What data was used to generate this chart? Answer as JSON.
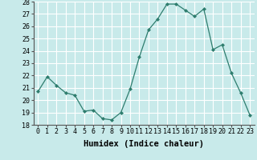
{
  "x": [
    0,
    1,
    2,
    3,
    4,
    5,
    6,
    7,
    8,
    9,
    10,
    11,
    12,
    13,
    14,
    15,
    16,
    17,
    18,
    19,
    20,
    21,
    22,
    23
  ],
  "y": [
    20.7,
    21.9,
    21.2,
    20.6,
    20.4,
    19.1,
    19.2,
    18.5,
    18.4,
    19.0,
    20.9,
    23.5,
    25.7,
    26.6,
    27.8,
    27.8,
    27.3,
    26.8,
    27.4,
    24.1,
    24.5,
    22.2,
    20.6,
    18.8
  ],
  "line_color": "#2e7d6e",
  "marker": "D",
  "marker_size": 2.0,
  "bg_color": "#c8eaea",
  "grid_color": "#ffffff",
  "xlabel": "Humidex (Indice chaleur)",
  "ylim": [
    18,
    28
  ],
  "xlim": [
    -0.5,
    23.5
  ],
  "yticks": [
    18,
    19,
    20,
    21,
    22,
    23,
    24,
    25,
    26,
    27,
    28
  ],
  "xticks": [
    0,
    1,
    2,
    3,
    4,
    5,
    6,
    7,
    8,
    9,
    10,
    11,
    12,
    13,
    14,
    15,
    16,
    17,
    18,
    19,
    20,
    21,
    22,
    23
  ],
  "xtick_labels": [
    "0",
    "1",
    "2",
    "3",
    "4",
    "5",
    "6",
    "7",
    "8",
    "9",
    "10",
    "11",
    "12",
    "13",
    "14",
    "15",
    "16",
    "17",
    "18",
    "19",
    "20",
    "21",
    "22",
    "23"
  ],
  "xlabel_fontsize": 7.5,
  "tick_fontsize": 6.0
}
